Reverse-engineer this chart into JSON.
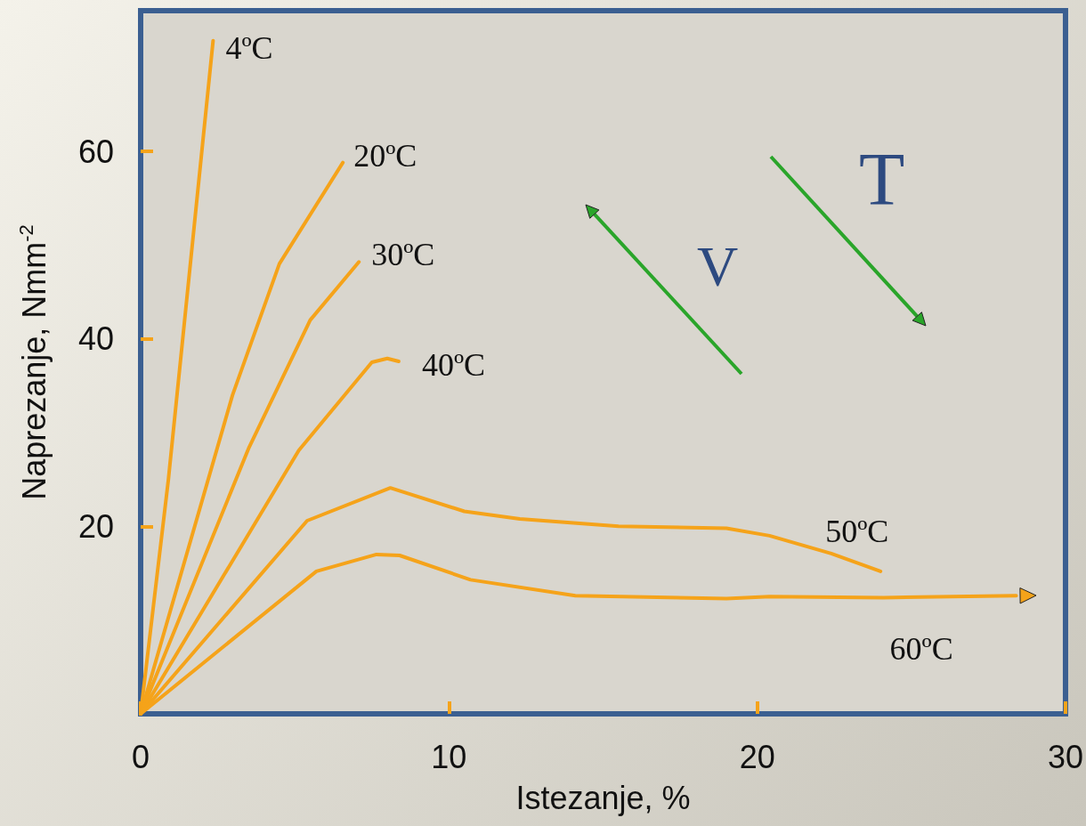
{
  "chart_data": {
    "type": "line",
    "xlabel": "Istezanje, %",
    "ylabel": "Naprezanje, Nmm$^{-2}$",
    "xlim": [
      0,
      30
    ],
    "ylim": [
      0,
      75
    ],
    "xticks": [
      0,
      10,
      20,
      30
    ],
    "yticks": [
      20,
      40,
      60
    ],
    "marker": "none",
    "line_style": "solid",
    "legend": false,
    "grid": false,
    "annotations": [
      "V",
      "T"
    ],
    "series": [
      {
        "name": "4ºC",
        "color": "#f5a31a",
        "x": [
          0,
          0.9,
          2.35
        ],
        "values": [
          0,
          25,
          71.8
        ]
      },
      {
        "name": "20ºC",
        "color": "#f5a31a",
        "x": [
          0,
          2.98,
          4.5,
          6.56
        ],
        "values": [
          0,
          34,
          48,
          58.8
        ]
      },
      {
        "name": "30ºC",
        "color": "#f5a31a",
        "x": [
          0,
          3.5,
          5.5,
          7.08
        ],
        "values": [
          0,
          28.3,
          42,
          48.2
        ]
      },
      {
        "name": "40ºC",
        "color": "#f5a31a",
        "x": [
          0,
          5.13,
          7.5,
          8.0,
          8.37
        ],
        "values": [
          0,
          28.1,
          37.5,
          37.9,
          37.6
        ]
      },
      {
        "name": "50ºC",
        "color": "#f5a31a",
        "x": [
          0,
          5.4,
          8.1,
          10.5,
          12.3,
          15.5,
          19.0,
          20.4,
          22.4,
          24.0
        ],
        "values": [
          0,
          20.6,
          24.1,
          21.6,
          20.8,
          20.0,
          19.8,
          19.0,
          17.1,
          15.2
        ]
      },
      {
        "name": "60ºC",
        "color": "#f5a31a",
        "x": [
          0,
          5.7,
          7.65,
          8.4,
          10.7,
          14.1,
          19.0,
          20.4,
          24.1,
          28.4
        ],
        "values": [
          0,
          15.2,
          17.0,
          16.9,
          14.3,
          12.6,
          12.3,
          12.5,
          12.4,
          12.6
        ]
      }
    ]
  }
}
